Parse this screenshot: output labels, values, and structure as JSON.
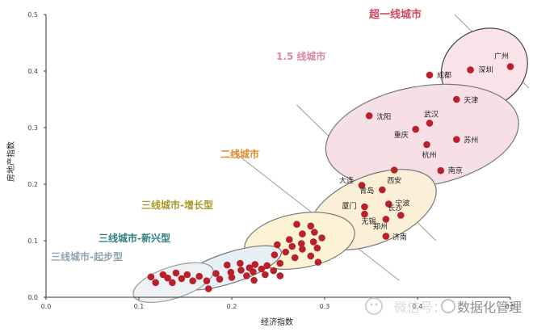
{
  "chart_data": {
    "type": "scatter",
    "xlabel": "经济指数",
    "ylabel": "房地产指数",
    "xlim": [
      0.0,
      0.5
    ],
    "ylim": [
      0.0,
      0.5
    ],
    "xticks": [
      "0.0",
      "0.1",
      "0.2",
      "0.3",
      "0.4",
      "0.5"
    ],
    "yticks": [
      "0.0",
      "0.1",
      "0.2",
      "0.3",
      "0.4",
      "0.5"
    ],
    "grid": false,
    "point_color": "#b8212c",
    "groups": [
      {
        "name": "超一线城市",
        "label_color": "#d44a5e",
        "fill": "#f9e3e8",
        "stroke": "#444444",
        "ellipse": {
          "cx": 0.472,
          "cy": 0.405,
          "rx": 0.048,
          "ry": 0.068,
          "rotate": -30
        }
      },
      {
        "name": "1.5 线城市",
        "label_color": "#d98aa0",
        "fill": "#f6dfe5",
        "stroke": "#777777",
        "ellipse": {
          "cx": 0.405,
          "cy": 0.285,
          "rx": 0.105,
          "ry": 0.088,
          "rotate": -10
        }
      },
      {
        "name": "二线城市",
        "label_color": "#e08c2c",
        "fill": "#fcefd8",
        "stroke": "#777777",
        "ellipse": {
          "cx": 0.352,
          "cy": 0.155,
          "rx": 0.072,
          "ry": 0.06,
          "rotate": -22
        }
      },
      {
        "name": "三线城市-增长型",
        "label_color": "#a89a2a",
        "fill": "#fbf3d4",
        "stroke": "#777777",
        "ellipse": {
          "cx": 0.273,
          "cy": 0.1,
          "rx": 0.06,
          "ry": 0.048,
          "rotate": -10
        }
      },
      {
        "name": "三线城市-新兴型",
        "label_color": "#2f7e7e",
        "fill": "#e6eff3",
        "stroke": "#777777",
        "ellipse": {
          "cx": 0.198,
          "cy": 0.052,
          "rx": 0.058,
          "ry": 0.027,
          "rotate": -18
        }
      },
      {
        "name": "三线城市-起步型",
        "label_color": "#8fa6b0",
        "fill": "#eef2f4",
        "stroke": "#999999",
        "ellipse": {
          "cx": 0.137,
          "cy": 0.026,
          "rx": 0.045,
          "ry": 0.028,
          "rotate": -18
        }
      }
    ],
    "divider_lines": [
      [
        [
          0.44,
          0.5
        ],
        [
          0.52,
          0.37
        ]
      ],
      [
        [
          0.27,
          0.34
        ],
        [
          0.42,
          0.1
        ]
      ],
      [
        [
          0.2,
          0.26
        ],
        [
          0.38,
          0.03
        ]
      ]
    ],
    "labeled_points": [
      {
        "name": "广州",
        "x": 0.5,
        "y": 0.408
      },
      {
        "name": "深圳",
        "x": 0.457,
        "y": 0.402
      },
      {
        "name": "成都",
        "x": 0.413,
        "y": 0.393
      },
      {
        "name": "天津",
        "x": 0.442,
        "y": 0.35
      },
      {
        "name": "沈阳",
        "x": 0.348,
        "y": 0.321
      },
      {
        "name": "武汉",
        "x": 0.413,
        "y": 0.308
      },
      {
        "name": "重庆",
        "x": 0.398,
        "y": 0.297
      },
      {
        "name": "苏州",
        "x": 0.442,
        "y": 0.279
      },
      {
        "name": "杭州",
        "x": 0.41,
        "y": 0.27
      },
      {
        "name": "西安",
        "x": 0.375,
        "y": 0.225
      },
      {
        "name": "南京",
        "x": 0.425,
        "y": 0.224
      },
      {
        "name": "大连",
        "x": 0.34,
        "y": 0.198
      },
      {
        "name": "青岛",
        "x": 0.362,
        "y": 0.19
      },
      {
        "name": "宁波",
        "x": 0.369,
        "y": 0.165
      },
      {
        "name": "厦门",
        "x": 0.343,
        "y": 0.16
      },
      {
        "name": "无锡",
        "x": 0.343,
        "y": 0.147
      },
      {
        "name": "长沙",
        "x": 0.382,
        "y": 0.145
      },
      {
        "name": "郑州",
        "x": 0.366,
        "y": 0.138
      },
      {
        "name": "济南",
        "x": 0.366,
        "y": 0.108
      }
    ],
    "unlabeled_points": [
      [
        0.27,
        0.129
      ],
      [
        0.285,
        0.126
      ],
      [
        0.289,
        0.115
      ],
      [
        0.276,
        0.112
      ],
      [
        0.297,
        0.105
      ],
      [
        0.262,
        0.102
      ],
      [
        0.288,
        0.098
      ],
      [
        0.275,
        0.095
      ],
      [
        0.249,
        0.093
      ],
      [
        0.265,
        0.09
      ],
      [
        0.258,
        0.08
      ],
      [
        0.276,
        0.085
      ],
      [
        0.292,
        0.087
      ],
      [
        0.285,
        0.073
      ],
      [
        0.268,
        0.07
      ],
      [
        0.246,
        0.075
      ],
      [
        0.252,
        0.06
      ],
      [
        0.293,
        0.062
      ],
      [
        0.209,
        0.06
      ],
      [
        0.225,
        0.058
      ],
      [
        0.238,
        0.056
      ],
      [
        0.195,
        0.057
      ],
      [
        0.219,
        0.052
      ],
      [
        0.232,
        0.05
      ],
      [
        0.245,
        0.047
      ],
      [
        0.21,
        0.048
      ],
      [
        0.223,
        0.045
      ],
      [
        0.199,
        0.044
      ],
      [
        0.183,
        0.042
      ],
      [
        0.216,
        0.038
      ],
      [
        0.236,
        0.04
      ],
      [
        0.252,
        0.038
      ],
      [
        0.2,
        0.035
      ],
      [
        0.187,
        0.032
      ],
      [
        0.224,
        0.03
      ],
      [
        0.165,
        0.037
      ],
      [
        0.173,
        0.029
      ],
      [
        0.113,
        0.036
      ],
      [
        0.126,
        0.04
      ],
      [
        0.14,
        0.043
      ],
      [
        0.152,
        0.04
      ],
      [
        0.131,
        0.034
      ],
      [
        0.146,
        0.033
      ],
      [
        0.158,
        0.029
      ],
      [
        0.118,
        0.026
      ],
      [
        0.136,
        0.026
      ],
      [
        0.175,
        0.015
      ]
    ]
  },
  "watermark": {
    "text1": "微信号：",
    "text2": "数据化管理"
  }
}
